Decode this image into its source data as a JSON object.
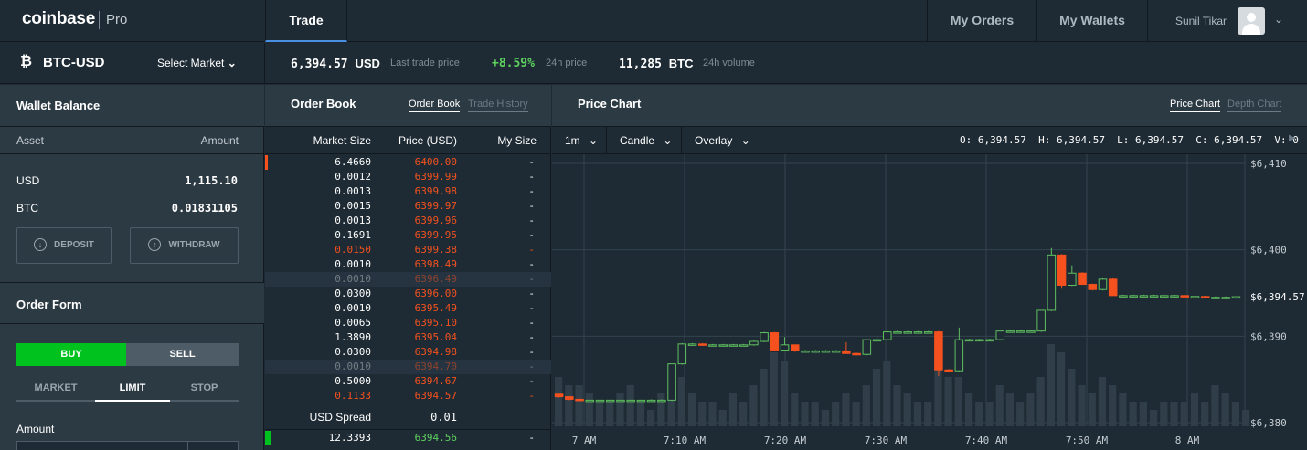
{
  "nav": {
    "logo": "coinbase",
    "logo_suffix": "Pro",
    "trade_tab": "Trade",
    "my_orders": "My Orders",
    "my_wallets": "My Wallets",
    "user_name": "Sunil Tikar"
  },
  "ticker": {
    "pair": "BTC-USD",
    "select_market": "Select Market",
    "last_price": "6,394.57",
    "last_price_unit": "USD",
    "last_price_label": "Last trade price",
    "change": "+8.59%",
    "change_label": "24h price",
    "volume": "11,285",
    "volume_unit": "BTC",
    "volume_label": "24h volume"
  },
  "wallet": {
    "title": "Wallet Balance",
    "col_asset": "Asset",
    "col_amount": "Amount",
    "rows": [
      {
        "asset": "USD",
        "amount": "1,115.10"
      },
      {
        "asset": "BTC",
        "amount": "0.01831105"
      }
    ],
    "deposit": "DEPOSIT",
    "withdraw": "WITHDRAW"
  },
  "order_form": {
    "title": "Order Form",
    "buy": "BUY",
    "sell": "SELL",
    "tabs": [
      "MARKET",
      "LIMIT",
      "STOP"
    ],
    "active_tab": "LIMIT",
    "amount_label": "Amount"
  },
  "order_book": {
    "title": "Order Book",
    "tab_active": "Order Book",
    "tab_inactive": "Trade History",
    "col_market_size": "Market Size",
    "col_price": "Price (USD)",
    "col_my_size": "My Size",
    "asks": [
      {
        "size": "6.4660",
        "price": "6400.00",
        "my": "-",
        "faded": false,
        "bar": 0.03
      },
      {
        "size": "0.0012",
        "price": "6399.99",
        "my": "-",
        "faded": false,
        "bar": 0
      },
      {
        "size": "0.0013",
        "price": "6399.98",
        "my": "-",
        "faded": false,
        "bar": 0
      },
      {
        "size": "0.0015",
        "price": "6399.97",
        "my": "-",
        "faded": false,
        "bar": 0
      },
      {
        "size": "0.0013",
        "price": "6399.96",
        "my": "-",
        "faded": false,
        "bar": 0
      },
      {
        "size": "0.1691",
        "price": "6399.95",
        "my": "-",
        "faded": false,
        "bar": 0
      },
      {
        "size": "0.0150",
        "price": "6399.38",
        "my": "-",
        "faded": false,
        "bar": 0,
        "red": true
      },
      {
        "size": "0.0010",
        "price": "6398.49",
        "my": "-",
        "faded": false,
        "bar": 0
      },
      {
        "size": "0.0010",
        "price": "6396.49",
        "my": "-",
        "faded": true,
        "bar": 0
      },
      {
        "size": "0.0300",
        "price": "6396.00",
        "my": "-",
        "faded": false,
        "bar": 0
      },
      {
        "size": "0.0010",
        "price": "6395.49",
        "my": "-",
        "faded": false,
        "bar": 0
      },
      {
        "size": "0.0065",
        "price": "6395.10",
        "my": "-",
        "faded": false,
        "bar": 0
      },
      {
        "size": "1.3890",
        "price": "6395.04",
        "my": "-",
        "faded": false,
        "bar": 0
      },
      {
        "size": "0.0300",
        "price": "6394.98",
        "my": "-",
        "faded": false,
        "bar": 0
      },
      {
        "size": "0.0010",
        "price": "6394.70",
        "my": "-",
        "faded": true,
        "bar": 0
      },
      {
        "size": "0.5000",
        "price": "6394.67",
        "my": "-",
        "faded": false,
        "bar": 0
      },
      {
        "size": "0.1133",
        "price": "6394.57",
        "my": "-",
        "faded": false,
        "bar": 0,
        "red": true
      }
    ],
    "spread_label": "USD Spread",
    "spread_value": "0.01",
    "bids": [
      {
        "size": "12.3393",
        "price": "6394.56",
        "my": "-"
      }
    ]
  },
  "chart_panel": {
    "title": "Price Chart",
    "tab_active": "Price Chart",
    "tab_inactive": "Depth Chart",
    "interval": "1m",
    "style": "Candle",
    "overlay": "Overlay",
    "ohlcv": "O: 6,394.57  H: 6,394.57  L: 6,394.57  C: 6,394.57  V: 0",
    "colors": {
      "up": "#5fbf5f",
      "down": "#f4511e",
      "grid": "#33434e"
    }
  },
  "chart_data": {
    "type": "candlestick",
    "x_tick_labels": [
      "7 AM",
      "7:10 AM",
      "7:20 AM",
      "7:30 AM",
      "7:40 AM",
      "7:50 AM",
      "8 AM"
    ],
    "y_tick_labels": [
      "$6,410",
      "$6,400",
      "$6,390",
      "$6,380"
    ],
    "ylim": [
      6380,
      6410
    ],
    "last_price_label": "$6,394.57",
    "candles": [
      {
        "o": 6383.3,
        "h": 6383.3,
        "l": 6382.9,
        "c": 6383.0
      },
      {
        "o": 6383.0,
        "h": 6383.0,
        "l": 6382.6,
        "c": 6382.7
      },
      {
        "o": 6382.7,
        "h": 6382.8,
        "l": 6382.5,
        "c": 6382.6
      },
      {
        "o": 6382.6,
        "h": 6382.6,
        "l": 6382.5,
        "c": 6382.6
      },
      {
        "o": 6382.6,
        "h": 6382.6,
        "l": 6382.5,
        "c": 6382.6
      },
      {
        "o": 6382.6,
        "h": 6382.6,
        "l": 6382.5,
        "c": 6382.6
      },
      {
        "o": 6382.6,
        "h": 6382.6,
        "l": 6382.5,
        "c": 6382.6
      },
      {
        "o": 6382.6,
        "h": 6382.6,
        "l": 6382.5,
        "c": 6382.6
      },
      {
        "o": 6382.6,
        "h": 6382.6,
        "l": 6382.5,
        "c": 6382.6
      },
      {
        "o": 6382.6,
        "h": 6382.7,
        "l": 6382.5,
        "c": 6382.6
      },
      {
        "o": 6382.6,
        "h": 6382.7,
        "l": 6382.5,
        "c": 6382.6
      },
      {
        "o": 6382.6,
        "h": 6386.8,
        "l": 6382.5,
        "c": 6386.8
      },
      {
        "o": 6386.8,
        "h": 6389.2,
        "l": 6386.7,
        "c": 6389.1
      },
      {
        "o": 6389.1,
        "h": 6389.2,
        "l": 6389.0,
        "c": 6389.1
      },
      {
        "o": 6389.1,
        "h": 6389.2,
        "l": 6389.0,
        "c": 6389.0
      },
      {
        "o": 6389.0,
        "h": 6389.1,
        "l": 6388.9,
        "c": 6389.0
      },
      {
        "o": 6389.0,
        "h": 6389.1,
        "l": 6388.9,
        "c": 6389.0
      },
      {
        "o": 6389.0,
        "h": 6389.1,
        "l": 6388.9,
        "c": 6389.0
      },
      {
        "o": 6389.0,
        "h": 6389.1,
        "l": 6388.9,
        "c": 6389.0
      },
      {
        "o": 6389.0,
        "h": 6389.5,
        "l": 6388.9,
        "c": 6389.4
      },
      {
        "o": 6389.4,
        "h": 6390.5,
        "l": 6389.3,
        "c": 6390.4
      },
      {
        "o": 6390.4,
        "h": 6390.5,
        "l": 6388.3,
        "c": 6388.4
      },
      {
        "o": 6388.4,
        "h": 6389.9,
        "l": 6388.3,
        "c": 6389.0
      },
      {
        "o": 6389.0,
        "h": 6389.0,
        "l": 6388.2,
        "c": 6388.3
      },
      {
        "o": 6388.3,
        "h": 6388.4,
        "l": 6388.2,
        "c": 6388.3
      },
      {
        "o": 6388.3,
        "h": 6388.4,
        "l": 6388.2,
        "c": 6388.3
      },
      {
        "o": 6388.3,
        "h": 6388.4,
        "l": 6388.2,
        "c": 6388.3
      },
      {
        "o": 6388.3,
        "h": 6388.4,
        "l": 6388.2,
        "c": 6388.3
      },
      {
        "o": 6388.3,
        "h": 6389.3,
        "l": 6388.0,
        "c": 6388.0
      },
      {
        "o": 6388.0,
        "h": 6388.1,
        "l": 6387.8,
        "c": 6387.9
      },
      {
        "o": 6387.9,
        "h": 6389.6,
        "l": 6387.8,
        "c": 6389.6
      },
      {
        "o": 6389.6,
        "h": 6390.2,
        "l": 6389.5,
        "c": 6389.6
      },
      {
        "o": 6389.6,
        "h": 6390.6,
        "l": 6389.5,
        "c": 6390.5
      },
      {
        "o": 6390.5,
        "h": 6390.7,
        "l": 6390.4,
        "c": 6390.5
      },
      {
        "o": 6390.5,
        "h": 6390.6,
        "l": 6390.4,
        "c": 6390.5
      },
      {
        "o": 6390.5,
        "h": 6390.6,
        "l": 6390.4,
        "c": 6390.5
      },
      {
        "o": 6390.5,
        "h": 6390.6,
        "l": 6390.4,
        "c": 6390.5
      },
      {
        "o": 6390.5,
        "h": 6390.6,
        "l": 6385.4,
        "c": 6386.1
      },
      {
        "o": 6386.1,
        "h": 6386.2,
        "l": 6385.9,
        "c": 6386.0
      },
      {
        "o": 6386.0,
        "h": 6391.0,
        "l": 6385.9,
        "c": 6389.6
      },
      {
        "o": 6389.6,
        "h": 6389.7,
        "l": 6389.5,
        "c": 6389.6
      },
      {
        "o": 6389.6,
        "h": 6389.7,
        "l": 6389.5,
        "c": 6389.6
      },
      {
        "o": 6389.6,
        "h": 6389.7,
        "l": 6389.5,
        "c": 6389.6
      },
      {
        "o": 6389.6,
        "h": 6390.6,
        "l": 6389.5,
        "c": 6390.6
      },
      {
        "o": 6390.6,
        "h": 6390.7,
        "l": 6390.5,
        "c": 6390.6
      },
      {
        "o": 6390.6,
        "h": 6390.7,
        "l": 6390.5,
        "c": 6390.6
      },
      {
        "o": 6390.6,
        "h": 6390.7,
        "l": 6390.5,
        "c": 6390.6
      },
      {
        "o": 6390.6,
        "h": 6393.0,
        "l": 6390.5,
        "c": 6393.0
      },
      {
        "o": 6393.0,
        "h": 6400.2,
        "l": 6392.9,
        "c": 6399.4
      },
      {
        "o": 6399.4,
        "h": 6399.5,
        "l": 6395.5,
        "c": 6395.9
      },
      {
        "o": 6395.9,
        "h": 6398.2,
        "l": 6395.8,
        "c": 6397.3
      },
      {
        "o": 6397.3,
        "h": 6397.4,
        "l": 6396.0,
        "c": 6396.0
      },
      {
        "o": 6396.0,
        "h": 6396.1,
        "l": 6395.3,
        "c": 6395.4
      },
      {
        "o": 6395.4,
        "h": 6396.7,
        "l": 6395.3,
        "c": 6396.6
      },
      {
        "o": 6396.6,
        "h": 6396.7,
        "l": 6394.7,
        "c": 6394.7
      },
      {
        "o": 6394.7,
        "h": 6394.8,
        "l": 6394.6,
        "c": 6394.7
      },
      {
        "o": 6394.7,
        "h": 6394.8,
        "l": 6394.6,
        "c": 6394.7
      },
      {
        "o": 6394.7,
        "h": 6394.8,
        "l": 6394.6,
        "c": 6394.7
      },
      {
        "o": 6394.7,
        "h": 6394.8,
        "l": 6394.6,
        "c": 6394.7
      },
      {
        "o": 6394.7,
        "h": 6394.8,
        "l": 6394.6,
        "c": 6394.7
      },
      {
        "o": 6394.7,
        "h": 6394.8,
        "l": 6394.6,
        "c": 6394.7
      },
      {
        "o": 6394.7,
        "h": 6394.8,
        "l": 6394.6,
        "c": 6394.6
      },
      {
        "o": 6394.6,
        "h": 6394.7,
        "l": 6394.5,
        "c": 6394.6
      },
      {
        "o": 6394.6,
        "h": 6394.7,
        "l": 6394.4,
        "c": 6394.5
      },
      {
        "o": 6394.5,
        "h": 6394.6,
        "l": 6394.4,
        "c": 6394.5
      },
      {
        "o": 6394.5,
        "h": 6394.6,
        "l": 6394.4,
        "c": 6394.5
      },
      {
        "o": 6394.5,
        "h": 6394.6,
        "l": 6394.4,
        "c": 6394.57
      }
    ],
    "volumes": [
      0.6,
      0.5,
      0.5,
      0.4,
      0.3,
      0.3,
      0.4,
      0.5,
      0.3,
      0.2,
      0.4,
      0.5,
      0.6,
      0.4,
      0.3,
      0.3,
      0.2,
      0.4,
      0.3,
      0.5,
      0.7,
      0.9,
      0.8,
      0.4,
      0.3,
      0.3,
      0.2,
      0.3,
      0.4,
      0.3,
      0.5,
      0.7,
      0.8,
      0.5,
      0.4,
      0.3,
      0.3,
      0.9,
      0.6,
      0.6,
      0.4,
      0.3,
      0.3,
      0.5,
      0.4,
      0.3,
      0.4,
      0.6,
      1.0,
      0.9,
      0.7,
      0.5,
      0.4,
      0.6,
      0.5,
      0.4,
      0.3,
      0.3,
      0.2,
      0.3,
      0.3,
      0.3,
      0.4,
      0.3,
      0.5,
      0.4,
      0.3,
      0.2
    ]
  }
}
